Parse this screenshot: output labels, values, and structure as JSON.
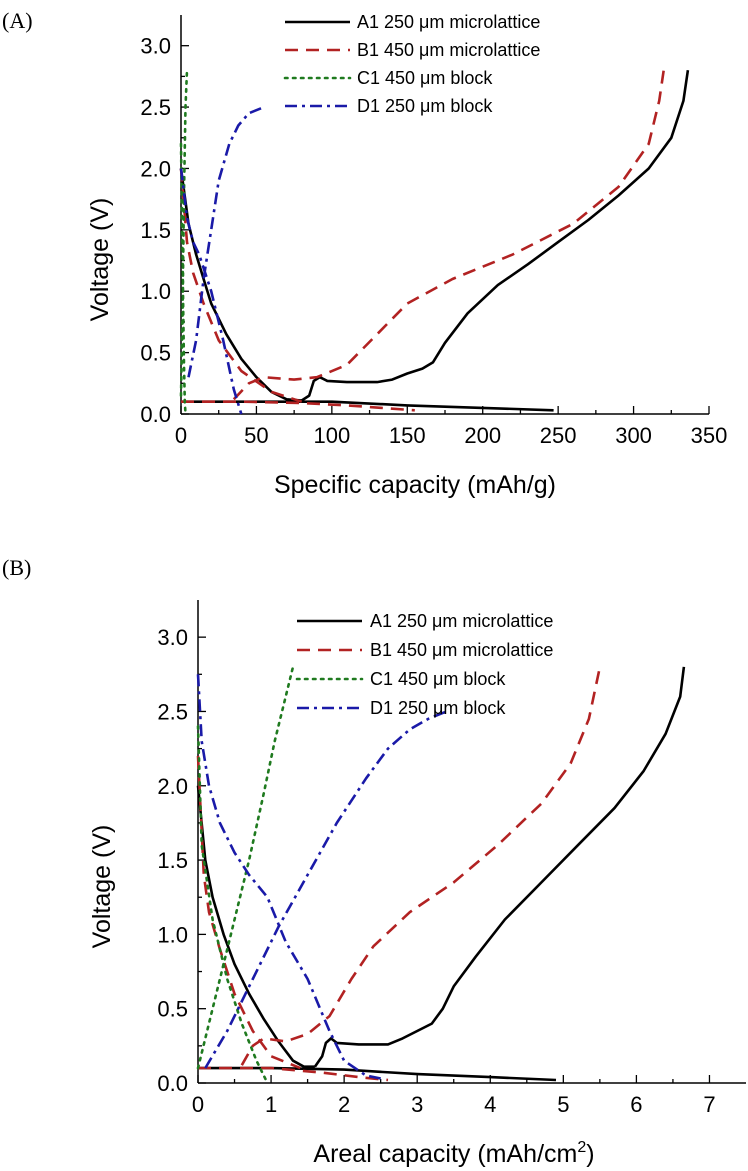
{
  "chart_data": [
    {
      "panel_label": "(A)",
      "type": "line",
      "xlabel": "Specific capacity (mAh/g)",
      "ylabel": "Voltage (V)",
      "xlim": [
        0,
        350
      ],
      "ylim": [
        0,
        3.25
      ],
      "xticks": [
        0,
        50,
        100,
        150,
        200,
        250,
        300,
        350
      ],
      "xtick_labels": [
        "0",
        "50",
        "100",
        "150",
        "200",
        "250",
        "300",
        "350"
      ],
      "yticks": [
        0,
        0.5,
        1.0,
        1.5,
        2.0,
        2.5,
        3.0
      ],
      "ytick_labels": [
        "0.0",
        "0.5",
        "1.0",
        "1.5",
        "2.0",
        "2.5",
        "3.0"
      ],
      "grid": false,
      "legend_position": "top-right",
      "series": [
        {
          "name": "A1 250 μm microlattice",
          "color": "#000000",
          "dash": "solid",
          "segments": [
            [
              [
                0,
                2.0
              ],
              [
                5,
                1.55
              ],
              [
                10,
                1.3
              ],
              [
                15,
                1.1
              ],
              [
                20,
                0.9
              ],
              [
                30,
                0.65
              ],
              [
                40,
                0.45
              ],
              [
                50,
                0.3
              ],
              [
                60,
                0.18
              ],
              [
                70,
                0.12
              ],
              [
                80,
                0.11
              ]
            ],
            [
              [
                0,
                0.1
              ],
              [
                50,
                0.1
              ],
              [
                100,
                0.1
              ],
              [
                150,
                0.07
              ],
              [
                200,
                0.05
              ],
              [
                247,
                0.03
              ]
            ],
            [
              [
                80,
                0.11
              ],
              [
                85,
                0.15
              ],
              [
                88,
                0.27
              ],
              [
                92,
                0.3
              ],
              [
                97,
                0.27
              ],
              [
                110,
                0.26
              ],
              [
                130,
                0.26
              ],
              [
                140,
                0.28
              ],
              [
                150,
                0.33
              ],
              [
                160,
                0.37
              ],
              [
                167,
                0.42
              ],
              [
                175,
                0.58
              ],
              [
                190,
                0.82
              ],
              [
                210,
                1.05
              ],
              [
                230,
                1.22
              ],
              [
                250,
                1.4
              ],
              [
                270,
                1.58
              ],
              [
                290,
                1.78
              ],
              [
                310,
                2.0
              ],
              [
                325,
                2.25
              ],
              [
                333,
                2.55
              ],
              [
                336,
                2.8
              ]
            ]
          ]
        },
        {
          "name": "B1 450 μm microlattice",
          "color": "#b22222",
          "dash": "dashed",
          "segments": [
            [
              [
                0,
                2.0
              ],
              [
                4,
                1.4
              ],
              [
                8,
                1.15
              ],
              [
                15,
                0.9
              ],
              [
                25,
                0.6
              ],
              [
                40,
                0.35
              ],
              [
                60,
                0.18
              ],
              [
                80,
                0.1
              ]
            ],
            [
              [
                0,
                0.1
              ],
              [
                40,
                0.1
              ],
              [
                80,
                0.09
              ],
              [
                110,
                0.07
              ],
              [
                155,
                0.03
              ]
            ],
            [
              [
                35,
                0.12
              ],
              [
                45,
                0.25
              ],
              [
                55,
                0.3
              ],
              [
                75,
                0.28
              ],
              [
                90,
                0.3
              ],
              [
                110,
                0.4
              ],
              [
                130,
                0.65
              ],
              [
                150,
                0.9
              ],
              [
                180,
                1.1
              ],
              [
                220,
                1.3
              ],
              [
                260,
                1.55
              ],
              [
                290,
                1.85
              ],
              [
                310,
                2.2
              ],
              [
                317,
                2.55
              ],
              [
                320,
                2.8
              ]
            ]
          ]
        },
        {
          "name": "C1 450 μm block",
          "color": "#1f7a1f",
          "dash": "dotted",
          "segments": [
            [
              [
                0,
                2.2
              ],
              [
                1,
                1.3
              ],
              [
                1.5,
                0.8
              ],
              [
                2,
                0.4
              ],
              [
                2.5,
                0.1
              ],
              [
                3,
                0.0
              ]
            ],
            [
              [
                0,
                0.15
              ],
              [
                1,
                0.8
              ],
              [
                2,
                1.8
              ],
              [
                3,
                2.5
              ],
              [
                4,
                2.8
              ]
            ]
          ]
        },
        {
          "name": "D1 250 μm block",
          "color": "#1a1aa8",
          "dash": "dashdot",
          "segments": [
            [
              [
                0,
                2.0
              ],
              [
                4,
                1.6
              ],
              [
                8,
                1.4
              ],
              [
                12,
                1.3
              ],
              [
                20,
                1.0
              ],
              [
                28,
                0.6
              ],
              [
                35,
                0.2
              ],
              [
                40,
                0.0
              ]
            ],
            [
              [
                5,
                0.3
              ],
              [
                10,
                0.6
              ],
              [
                15,
                1.1
              ],
              [
                20,
                1.5
              ],
              [
                25,
                1.9
              ],
              [
                32,
                2.2
              ],
              [
                38,
                2.35
              ],
              [
                45,
                2.45
              ],
              [
                55,
                2.5
              ]
            ]
          ]
        }
      ]
    },
    {
      "panel_label": "(B)",
      "type": "line",
      "xlabel": "Areal capacity (mAh/cm",
      "xlabel_sup": "2",
      "xlabel_tail": ")",
      "ylabel": "Voltage (V)",
      "xlim": [
        0,
        7.5
      ],
      "ylim": [
        0,
        3.25
      ],
      "xticks": [
        0,
        1,
        2,
        3,
        4,
        5,
        6,
        7
      ],
      "xtick_labels": [
        "0",
        "1",
        "2",
        "3",
        "4",
        "5",
        "6",
        "7"
      ],
      "yticks": [
        0,
        0.5,
        1.0,
        1.5,
        2.0,
        2.5,
        3.0
      ],
      "ytick_labels": [
        "0.0",
        "0.5",
        "1.0",
        "1.5",
        "2.0",
        "2.5",
        "3.0"
      ],
      "grid": false,
      "legend_position": "top-right",
      "series": [
        {
          "name": "A1 250 μm microlattice",
          "color": "#000000",
          "dash": "solid",
          "segments": [
            [
              [
                0,
                2.0
              ],
              [
                0.1,
                1.5
              ],
              [
                0.2,
                1.25
              ],
              [
                0.35,
                1.0
              ],
              [
                0.5,
                0.8
              ],
              [
                0.7,
                0.6
              ],
              [
                0.9,
                0.43
              ],
              [
                1.1,
                0.28
              ],
              [
                1.3,
                0.15
              ],
              [
                1.45,
                0.11
              ],
              [
                1.6,
                0.11
              ]
            ],
            [
              [
                0,
                0.1
              ],
              [
                1,
                0.1
              ],
              [
                2,
                0.09
              ],
              [
                3,
                0.06
              ],
              [
                4,
                0.04
              ],
              [
                4.9,
                0.02
              ]
            ],
            [
              [
                1.6,
                0.11
              ],
              [
                1.7,
                0.18
              ],
              [
                1.75,
                0.27
              ],
              [
                1.82,
                0.3
              ],
              [
                1.9,
                0.27
              ],
              [
                2.2,
                0.26
              ],
              [
                2.6,
                0.26
              ],
              [
                2.8,
                0.3
              ],
              [
                3.0,
                0.35
              ],
              [
                3.2,
                0.4
              ],
              [
                3.35,
                0.5
              ],
              [
                3.5,
                0.65
              ],
              [
                3.8,
                0.85
              ],
              [
                4.2,
                1.1
              ],
              [
                4.7,
                1.35
              ],
              [
                5.2,
                1.6
              ],
              [
                5.7,
                1.85
              ],
              [
                6.1,
                2.1
              ],
              [
                6.4,
                2.35
              ],
              [
                6.6,
                2.6
              ],
              [
                6.65,
                2.8
              ]
            ]
          ]
        },
        {
          "name": "B1 450 μm microlattice",
          "color": "#b22222",
          "dash": "dashed",
          "segments": [
            [
              [
                0,
                2.2
              ],
              [
                0.08,
                1.4
              ],
              [
                0.15,
                1.15
              ],
              [
                0.3,
                0.9
              ],
              [
                0.5,
                0.6
              ],
              [
                0.75,
                0.35
              ],
              [
                1.0,
                0.18
              ],
              [
                1.4,
                0.1
              ]
            ],
            [
              [
                0,
                0.1
              ],
              [
                1.0,
                0.1
              ],
              [
                1.7,
                0.07
              ],
              [
                2.2,
                0.04
              ],
              [
                2.6,
                0.02
              ]
            ],
            [
              [
                0.6,
                0.12
              ],
              [
                0.75,
                0.25
              ],
              [
                0.9,
                0.3
              ],
              [
                1.2,
                0.28
              ],
              [
                1.5,
                0.33
              ],
              [
                1.8,
                0.45
              ],
              [
                2.1,
                0.7
              ],
              [
                2.4,
                0.92
              ],
              [
                2.9,
                1.15
              ],
              [
                3.5,
                1.35
              ],
              [
                4.1,
                1.6
              ],
              [
                4.7,
                1.88
              ],
              [
                5.1,
                2.15
              ],
              [
                5.35,
                2.45
              ],
              [
                5.5,
                2.8
              ]
            ]
          ]
        },
        {
          "name": "C1 450 μm block",
          "color": "#1f7a1f",
          "dash": "dotted",
          "segments": [
            [
              [
                0,
                2.4
              ],
              [
                0.05,
                1.6
              ],
              [
                0.2,
                1.1
              ],
              [
                0.4,
                0.7
              ],
              [
                0.6,
                0.4
              ],
              [
                0.8,
                0.15
              ],
              [
                0.95,
                0.0
              ]
            ],
            [
              [
                0,
                0.1
              ],
              [
                0.2,
                0.5
              ],
              [
                0.45,
                1.0
              ],
              [
                0.7,
                1.5
              ],
              [
                0.9,
                1.95
              ],
              [
                1.05,
                2.3
              ],
              [
                1.2,
                2.6
              ],
              [
                1.3,
                2.8
              ]
            ]
          ]
        },
        {
          "name": "D1 250 μm block",
          "color": "#1a1aa8",
          "dash": "dashdot",
          "segments": [
            [
              [
                0,
                2.75
              ],
              [
                0.05,
                2.3
              ],
              [
                0.15,
                2.0
              ],
              [
                0.3,
                1.75
              ],
              [
                0.5,
                1.55
              ],
              [
                0.7,
                1.4
              ],
              [
                0.95,
                1.25
              ],
              [
                1.2,
                0.95
              ],
              [
                1.5,
                0.7
              ],
              [
                1.8,
                0.35
              ],
              [
                2.0,
                0.15
              ],
              [
                2.3,
                0.05
              ],
              [
                2.5,
                0.03
              ]
            ],
            [
              [
                0.1,
                0.1
              ],
              [
                0.4,
                0.35
              ],
              [
                0.75,
                0.7
              ],
              [
                1.1,
                1.05
              ],
              [
                1.5,
                1.4
              ],
              [
                1.9,
                1.75
              ],
              [
                2.3,
                2.05
              ],
              [
                2.6,
                2.25
              ],
              [
                2.9,
                2.38
              ],
              [
                3.15,
                2.45
              ],
              [
                3.4,
                2.5
              ]
            ]
          ]
        }
      ]
    }
  ]
}
